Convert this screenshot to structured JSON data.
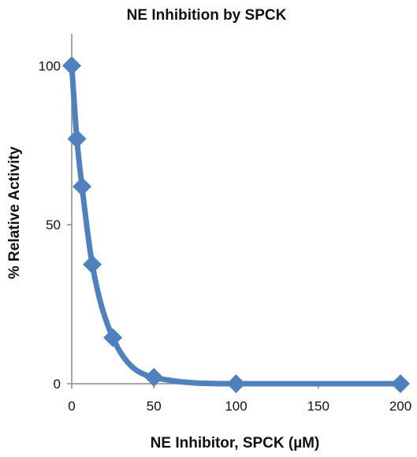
{
  "chart_data": {
    "type": "scatter",
    "title": "NE Inhibition by SPCK",
    "xlabel": "NE Inhibitor, SPCK (µM)",
    "ylabel": "% Relative Activity",
    "xlim": [
      0,
      200
    ],
    "ylim": [
      0,
      110
    ],
    "xticks": [
      "0",
      "50",
      "100",
      "150",
      "200"
    ],
    "yticks": [
      "0",
      "50",
      "100"
    ],
    "grid": false,
    "legend": "none",
    "marker": "diamond",
    "line": "smooth",
    "series": [
      {
        "x": [
          0,
          3.125,
          6.25,
          12.5,
          25,
          50,
          100,
          200
        ],
        "values": [
          100,
          77,
          62,
          37.5,
          14.5,
          2,
          0,
          0
        ]
      }
    ],
    "colors": {
      "series": "#4f81bd",
      "axis": "#888888"
    }
  }
}
